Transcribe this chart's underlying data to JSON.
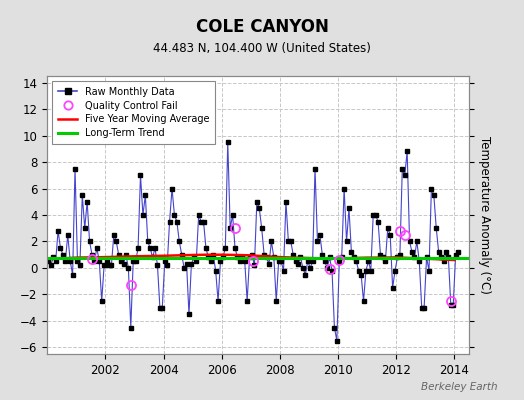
{
  "title": "COLE CANYON",
  "subtitle": "44.483 N, 104.400 W (United States)",
  "ylabel": "Temperature Anomaly (°C)",
  "watermark": "Berkeley Earth",
  "ylim": [
    -6.5,
    14.5
  ],
  "yticks": [
    -6,
    -4,
    -2,
    0,
    2,
    4,
    6,
    8,
    10,
    12,
    14
  ],
  "xlim": [
    2000.0,
    2014.5
  ],
  "xticks": [
    2002,
    2004,
    2006,
    2008,
    2010,
    2012,
    2014
  ],
  "bg_color": "#e0e0e0",
  "plot_bg_color": "#ffffff",
  "grid_color": "#c8c8c8",
  "raw_line_color": "#4444cc",
  "raw_dot_color": "#000000",
  "ma_color": "#ff0000",
  "trend_color": "#00cc00",
  "qc_color": "#ff44ff",
  "raw_data": [
    [
      2000.042,
      0.5
    ],
    [
      2000.125,
      0.2
    ],
    [
      2000.208,
      0.8
    ],
    [
      2000.292,
      0.5
    ],
    [
      2000.375,
      2.8
    ],
    [
      2000.458,
      1.5
    ],
    [
      2000.542,
      1.0
    ],
    [
      2000.625,
      0.5
    ],
    [
      2000.708,
      2.5
    ],
    [
      2000.792,
      0.5
    ],
    [
      2000.875,
      -0.5
    ],
    [
      2000.958,
      7.5
    ],
    [
      2001.042,
      0.5
    ],
    [
      2001.125,
      0.2
    ],
    [
      2001.208,
      5.5
    ],
    [
      2001.292,
      3.0
    ],
    [
      2001.375,
      5.0
    ],
    [
      2001.458,
      2.0
    ],
    [
      2001.542,
      1.0
    ],
    [
      2001.625,
      0.5
    ],
    [
      2001.708,
      1.5
    ],
    [
      2001.792,
      0.5
    ],
    [
      2001.875,
      -2.5
    ],
    [
      2001.958,
      0.2
    ],
    [
      2002.042,
      0.5
    ],
    [
      2002.125,
      0.2
    ],
    [
      2002.208,
      0.2
    ],
    [
      2002.292,
      2.5
    ],
    [
      2002.375,
      2.0
    ],
    [
      2002.458,
      1.0
    ],
    [
      2002.542,
      0.5
    ],
    [
      2002.625,
      0.3
    ],
    [
      2002.708,
      1.0
    ],
    [
      2002.792,
      0.0
    ],
    [
      2002.875,
      -4.5
    ],
    [
      2002.958,
      0.5
    ],
    [
      2003.042,
      0.5
    ],
    [
      2003.125,
      1.5
    ],
    [
      2003.208,
      7.0
    ],
    [
      2003.292,
      4.0
    ],
    [
      2003.375,
      5.5
    ],
    [
      2003.458,
      2.0
    ],
    [
      2003.542,
      1.5
    ],
    [
      2003.625,
      0.8
    ],
    [
      2003.708,
      1.5
    ],
    [
      2003.792,
      0.2
    ],
    [
      2003.875,
      -3.0
    ],
    [
      2003.958,
      -3.0
    ],
    [
      2004.042,
      0.5
    ],
    [
      2004.125,
      0.2
    ],
    [
      2004.208,
      3.5
    ],
    [
      2004.292,
      6.0
    ],
    [
      2004.375,
      4.0
    ],
    [
      2004.458,
      3.5
    ],
    [
      2004.542,
      2.0
    ],
    [
      2004.625,
      1.0
    ],
    [
      2004.708,
      0.0
    ],
    [
      2004.792,
      0.3
    ],
    [
      2004.875,
      -3.5
    ],
    [
      2004.958,
      0.3
    ],
    [
      2005.042,
      0.8
    ],
    [
      2005.125,
      0.5
    ],
    [
      2005.208,
      4.0
    ],
    [
      2005.292,
      3.5
    ],
    [
      2005.375,
      3.5
    ],
    [
      2005.458,
      1.5
    ],
    [
      2005.542,
      0.8
    ],
    [
      2005.625,
      0.5
    ],
    [
      2005.708,
      1.0
    ],
    [
      2005.792,
      -0.2
    ],
    [
      2005.875,
      -2.5
    ],
    [
      2005.958,
      0.5
    ],
    [
      2006.042,
      0.8
    ],
    [
      2006.125,
      1.5
    ],
    [
      2006.208,
      9.5
    ],
    [
      2006.292,
      3.0
    ],
    [
      2006.375,
      4.0
    ],
    [
      2006.458,
      1.5
    ],
    [
      2006.542,
      0.8
    ],
    [
      2006.625,
      0.5
    ],
    [
      2006.708,
      0.8
    ],
    [
      2006.792,
      0.5
    ],
    [
      2006.875,
      -2.5
    ],
    [
      2006.958,
      0.8
    ],
    [
      2007.042,
      1.0
    ],
    [
      2007.125,
      0.2
    ],
    [
      2007.208,
      5.0
    ],
    [
      2007.292,
      4.5
    ],
    [
      2007.375,
      3.0
    ],
    [
      2007.458,
      1.0
    ],
    [
      2007.542,
      0.8
    ],
    [
      2007.625,
      0.3
    ],
    [
      2007.708,
      2.0
    ],
    [
      2007.792,
      0.8
    ],
    [
      2007.875,
      -2.5
    ],
    [
      2007.958,
      0.5
    ],
    [
      2008.042,
      0.5
    ],
    [
      2008.125,
      -0.2
    ],
    [
      2008.208,
      5.0
    ],
    [
      2008.292,
      2.0
    ],
    [
      2008.375,
      2.0
    ],
    [
      2008.458,
      1.0
    ],
    [
      2008.542,
      0.5
    ],
    [
      2008.625,
      0.3
    ],
    [
      2008.708,
      0.8
    ],
    [
      2008.792,
      0.0
    ],
    [
      2008.875,
      -0.5
    ],
    [
      2008.958,
      0.5
    ],
    [
      2009.042,
      0.0
    ],
    [
      2009.125,
      0.5
    ],
    [
      2009.208,
      7.5
    ],
    [
      2009.292,
      2.0
    ],
    [
      2009.375,
      2.5
    ],
    [
      2009.458,
      1.0
    ],
    [
      2009.542,
      0.5
    ],
    [
      2009.625,
      0.0
    ],
    [
      2009.708,
      0.8
    ],
    [
      2009.792,
      -0.2
    ],
    [
      2009.875,
      -4.5
    ],
    [
      2009.958,
      -5.5
    ],
    [
      2010.042,
      0.5
    ],
    [
      2010.125,
      0.8
    ],
    [
      2010.208,
      6.0
    ],
    [
      2010.292,
      2.0
    ],
    [
      2010.375,
      4.5
    ],
    [
      2010.458,
      1.2
    ],
    [
      2010.542,
      0.8
    ],
    [
      2010.625,
      0.5
    ],
    [
      2010.708,
      -0.2
    ],
    [
      2010.792,
      -0.5
    ],
    [
      2010.875,
      -2.5
    ],
    [
      2010.958,
      -0.2
    ],
    [
      2011.042,
      0.5
    ],
    [
      2011.125,
      -0.2
    ],
    [
      2011.208,
      4.0
    ],
    [
      2011.292,
      4.0
    ],
    [
      2011.375,
      3.5
    ],
    [
      2011.458,
      1.0
    ],
    [
      2011.542,
      0.8
    ],
    [
      2011.625,
      0.5
    ],
    [
      2011.708,
      3.0
    ],
    [
      2011.792,
      2.5
    ],
    [
      2011.875,
      -1.5
    ],
    [
      2011.958,
      -0.2
    ],
    [
      2012.042,
      0.8
    ],
    [
      2012.125,
      1.0
    ],
    [
      2012.208,
      7.5
    ],
    [
      2012.292,
      7.0
    ],
    [
      2012.375,
      8.8
    ],
    [
      2012.458,
      2.0
    ],
    [
      2012.542,
      1.2
    ],
    [
      2012.625,
      0.8
    ],
    [
      2012.708,
      2.0
    ],
    [
      2012.792,
      0.5
    ],
    [
      2012.875,
      -3.0
    ],
    [
      2012.958,
      -3.0
    ],
    [
      2013.042,
      0.8
    ],
    [
      2013.125,
      -0.2
    ],
    [
      2013.208,
      6.0
    ],
    [
      2013.292,
      5.5
    ],
    [
      2013.375,
      3.0
    ],
    [
      2013.458,
      1.2
    ],
    [
      2013.542,
      0.8
    ],
    [
      2013.625,
      0.5
    ],
    [
      2013.708,
      1.2
    ],
    [
      2013.792,
      0.8
    ],
    [
      2013.875,
      -2.8
    ],
    [
      2013.958,
      -2.8
    ],
    [
      2014.042,
      1.0
    ],
    [
      2014.125,
      1.2
    ]
  ],
  "qc_fail_points": [
    [
      2001.542,
      0.7
    ],
    [
      2002.875,
      -1.3
    ],
    [
      2006.458,
      3.0
    ],
    [
      2007.083,
      0.5
    ],
    [
      2009.708,
      -0.1
    ],
    [
      2010.042,
      0.6
    ],
    [
      2012.125,
      2.8
    ],
    [
      2012.292,
      2.5
    ],
    [
      2013.875,
      -2.5
    ]
  ],
  "moving_avg_x": [
    2000.0,
    2000.5,
    2001.0,
    2001.5,
    2002.0,
    2002.5,
    2003.0,
    2003.5,
    2004.0,
    2004.5,
    2005.0,
    2005.5,
    2006.0,
    2006.5,
    2007.0,
    2007.5,
    2008.0,
    2008.5,
    2009.0,
    2009.5,
    2010.0,
    2010.5,
    2011.0,
    2011.5,
    2012.0,
    2012.5,
    2013.0,
    2013.5,
    2014.0
  ],
  "moving_avg_y": [
    0.7,
    0.72,
    0.78,
    0.8,
    0.82,
    0.85,
    0.88,
    0.9,
    0.92,
    0.95,
    0.98,
    1.0,
    1.0,
    0.98,
    0.95,
    0.88,
    0.82,
    0.78,
    0.75,
    0.72,
    0.72,
    0.75,
    0.78,
    0.78,
    0.8,
    0.75,
    0.7,
    0.65,
    0.6
  ],
  "trend_x": [
    2000.0,
    2014.5
  ],
  "trend_y": [
    0.72,
    0.72
  ]
}
